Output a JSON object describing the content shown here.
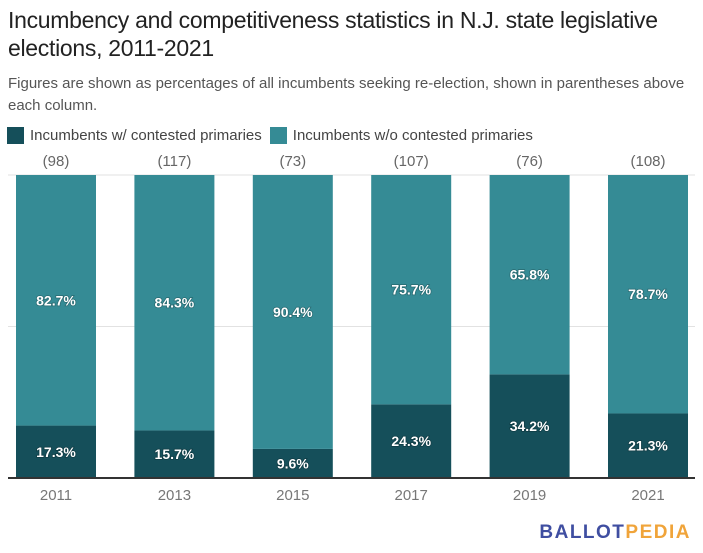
{
  "chart_data": {
    "type": "bar",
    "stacked": true,
    "title": "Incumbency and competitiveness statistics in N.J. state legislative elections, 2011-2021",
    "subtitle": "Figures are shown as percentages of all incumbents seeking re-election, shown in parentheses above each column.",
    "categories": [
      "2011",
      "2013",
      "2015",
      "2017",
      "2019",
      "2021"
    ],
    "totals_labels": [
      "(98)",
      "(117)",
      "(73)",
      "(107)",
      "(76)",
      "(108)"
    ],
    "series": [
      {
        "name": "Incumbents w/ contested primaries",
        "color": "#154f5a",
        "values": [
          17.3,
          15.7,
          9.6,
          24.3,
          34.2,
          21.3
        ]
      },
      {
        "name": "Incumbents w/o contested primaries",
        "color": "#358b95",
        "values": [
          82.7,
          84.3,
          90.4,
          75.7,
          65.8,
          78.7
        ]
      }
    ],
    "ylim": [
      0,
      100
    ],
    "gridlines": [
      50,
      100
    ],
    "legend": "top-left",
    "xlabel": "",
    "ylabel": ""
  },
  "source_logo": {
    "part1": "BALLOT",
    "part2": "PEDIA"
  }
}
